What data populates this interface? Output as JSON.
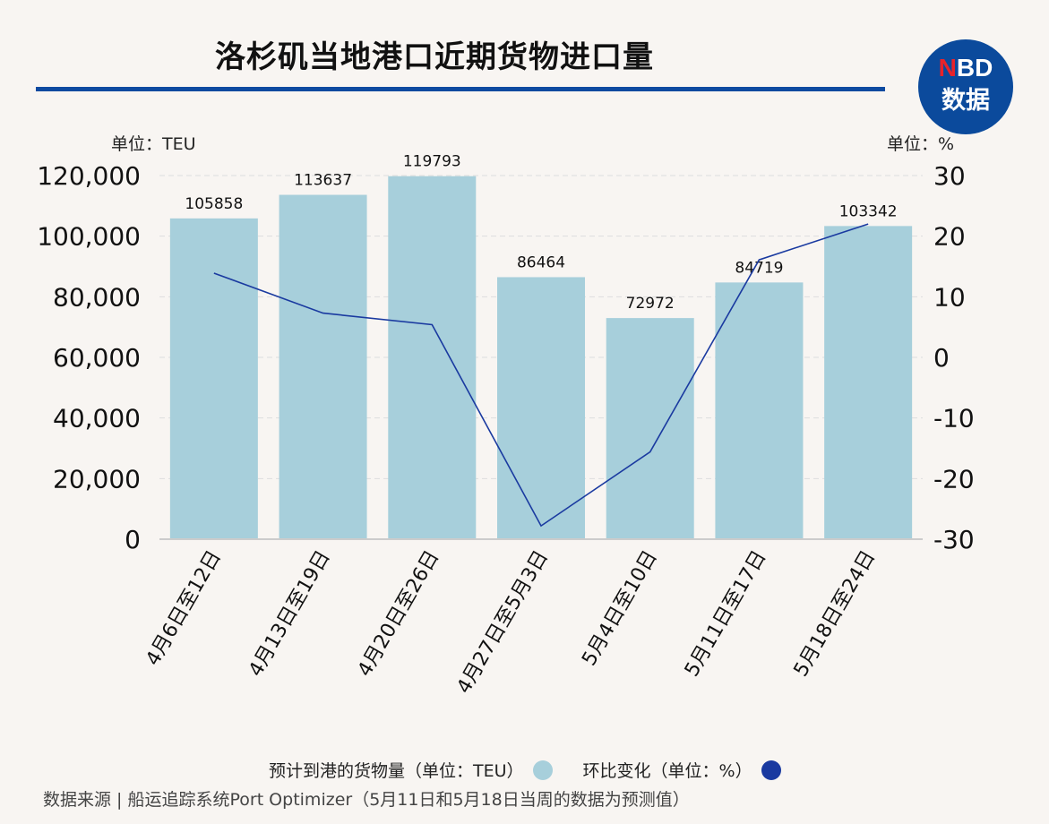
{
  "title": "洛杉矶当地港口近期货物进口量",
  "logo": {
    "line1_red": "N",
    "line1": "BD",
    "line2": "数据"
  },
  "source": "数据来源 | 船运追踪系统Port Optimizer（5月11日和5月18日当周的数据为预测值）",
  "chart_data": {
    "type": "bar+line",
    "categories": [
      "4月6日至12日",
      "4月13日至19日",
      "4月20日至26日",
      "4月27日至5月3日",
      "5月4日至10日",
      "5月11日至17日",
      "5月18日至24日"
    ],
    "series": [
      {
        "name": "预计到港的货物量（单位：TEU）",
        "type": "bar",
        "axis": "left",
        "color": "#a7cfdb",
        "values": [
          105858,
          113637,
          119793,
          86464,
          72972,
          84719,
          103342
        ]
      },
      {
        "name": "环比变化（单位：%）",
        "type": "line",
        "axis": "right",
        "color": "#1a3aa0",
        "values": [
          13.9,
          7.3,
          5.4,
          -27.8,
          -15.6,
          16.1,
          22.0
        ]
      }
    ],
    "left_axis": {
      "label": "单位：TEU",
      "range": [
        0,
        120000
      ],
      "ticks": [
        "0",
        "20,000",
        "40,000",
        "60,000",
        "80,000",
        "100,000",
        "120,000"
      ]
    },
    "right_axis": {
      "label": "单位：%",
      "range": [
        -30,
        30
      ],
      "ticks": [
        "-30",
        "-20",
        "-10",
        "0",
        "10",
        "20",
        "30"
      ]
    },
    "grid": true,
    "legend": "bottom"
  }
}
